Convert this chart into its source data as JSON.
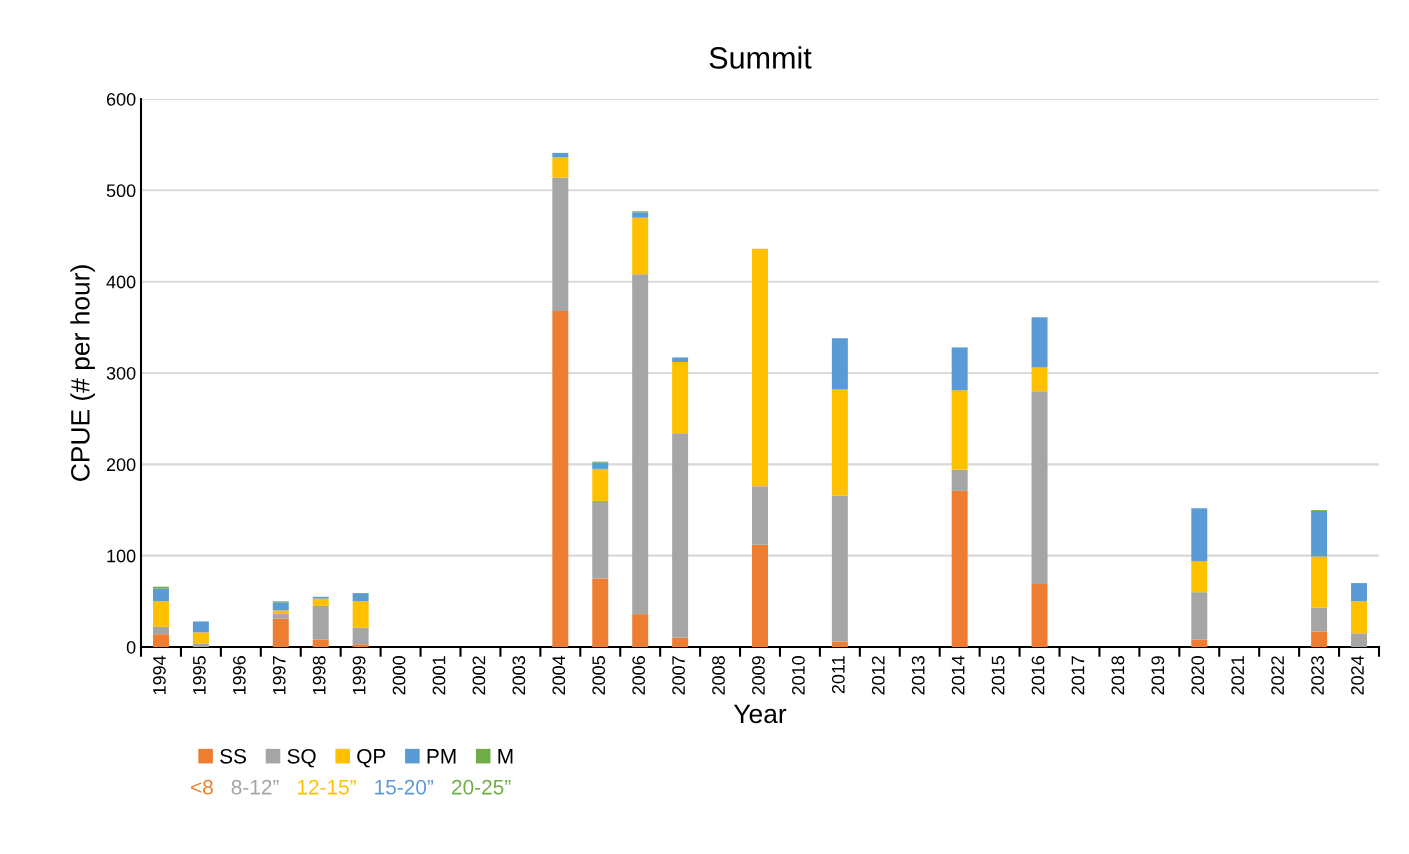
{
  "chart_data": {
    "type": "bar",
    "title": "Summit",
    "xlabel": "Year",
    "ylabel": "CPUE (# per hour)",
    "categories": [
      "1994",
      "1995",
      "1996",
      "1997",
      "1998",
      "1999",
      "2000",
      "2001",
      "2002",
      "2003",
      "2004",
      "2005",
      "2006",
      "2007",
      "2008",
      "2009",
      "2010",
      "2011",
      "2012",
      "2013",
      "2014",
      "2015",
      "2016",
      "2017",
      "2018",
      "2019",
      "2020",
      "2021",
      "2022",
      "2023",
      "2024"
    ],
    "stacked": true,
    "series": [
      {
        "name": "SS",
        "color": "#ed7d31",
        "values": [
          14,
          0,
          0,
          31,
          8,
          3,
          0,
          0,
          0,
          0,
          368,
          75,
          36,
          10,
          0,
          112,
          0,
          6,
          0,
          0,
          171,
          0,
          69,
          0,
          0,
          0,
          8,
          0,
          0,
          17,
          0
        ]
      },
      {
        "name": "SQ",
        "color": "#a5a5a5",
        "values": [
          8,
          4,
          0,
          5,
          37,
          18,
          0,
          0,
          0,
          0,
          146,
          85,
          372,
          224,
          0,
          64,
          0,
          160,
          0,
          0,
          23,
          0,
          211,
          0,
          0,
          0,
          52,
          0,
          0,
          26,
          15
        ]
      },
      {
        "name": "QP",
        "color": "#ffc000",
        "values": [
          28,
          12,
          0,
          4,
          8,
          29,
          0,
          0,
          0,
          0,
          22,
          35,
          62,
          78,
          0,
          260,
          0,
          116,
          0,
          0,
          87,
          0,
          26,
          0,
          0,
          0,
          34,
          0,
          0,
          56,
          35
        ]
      },
      {
        "name": "PM",
        "color": "#5b9bd5",
        "values": [
          14,
          12,
          0,
          9,
          2,
          8,
          0,
          0,
          0,
          0,
          5,
          7,
          6,
          5,
          0,
          0,
          0,
          56,
          0,
          0,
          47,
          0,
          55,
          0,
          0,
          0,
          58,
          0,
          0,
          50,
          20
        ]
      },
      {
        "name": "M",
        "color": "#70ad47",
        "values": [
          2,
          0,
          0,
          1,
          0,
          1,
          0,
          0,
          0,
          0,
          0,
          1,
          1,
          0,
          0,
          0,
          0,
          0,
          0,
          0,
          0,
          0,
          0,
          0,
          0,
          0,
          0,
          0,
          0,
          1,
          0
        ]
      }
    ],
    "annotations": [
      "<8",
      "8-12”",
      "12-15”",
      "15-20”",
      "20-25”"
    ],
    "ylim": [
      0,
      600
    ],
    "yticks": [
      0,
      100,
      200,
      300,
      400,
      500,
      600
    ],
    "grid": "y",
    "legend": "bottom left"
  }
}
